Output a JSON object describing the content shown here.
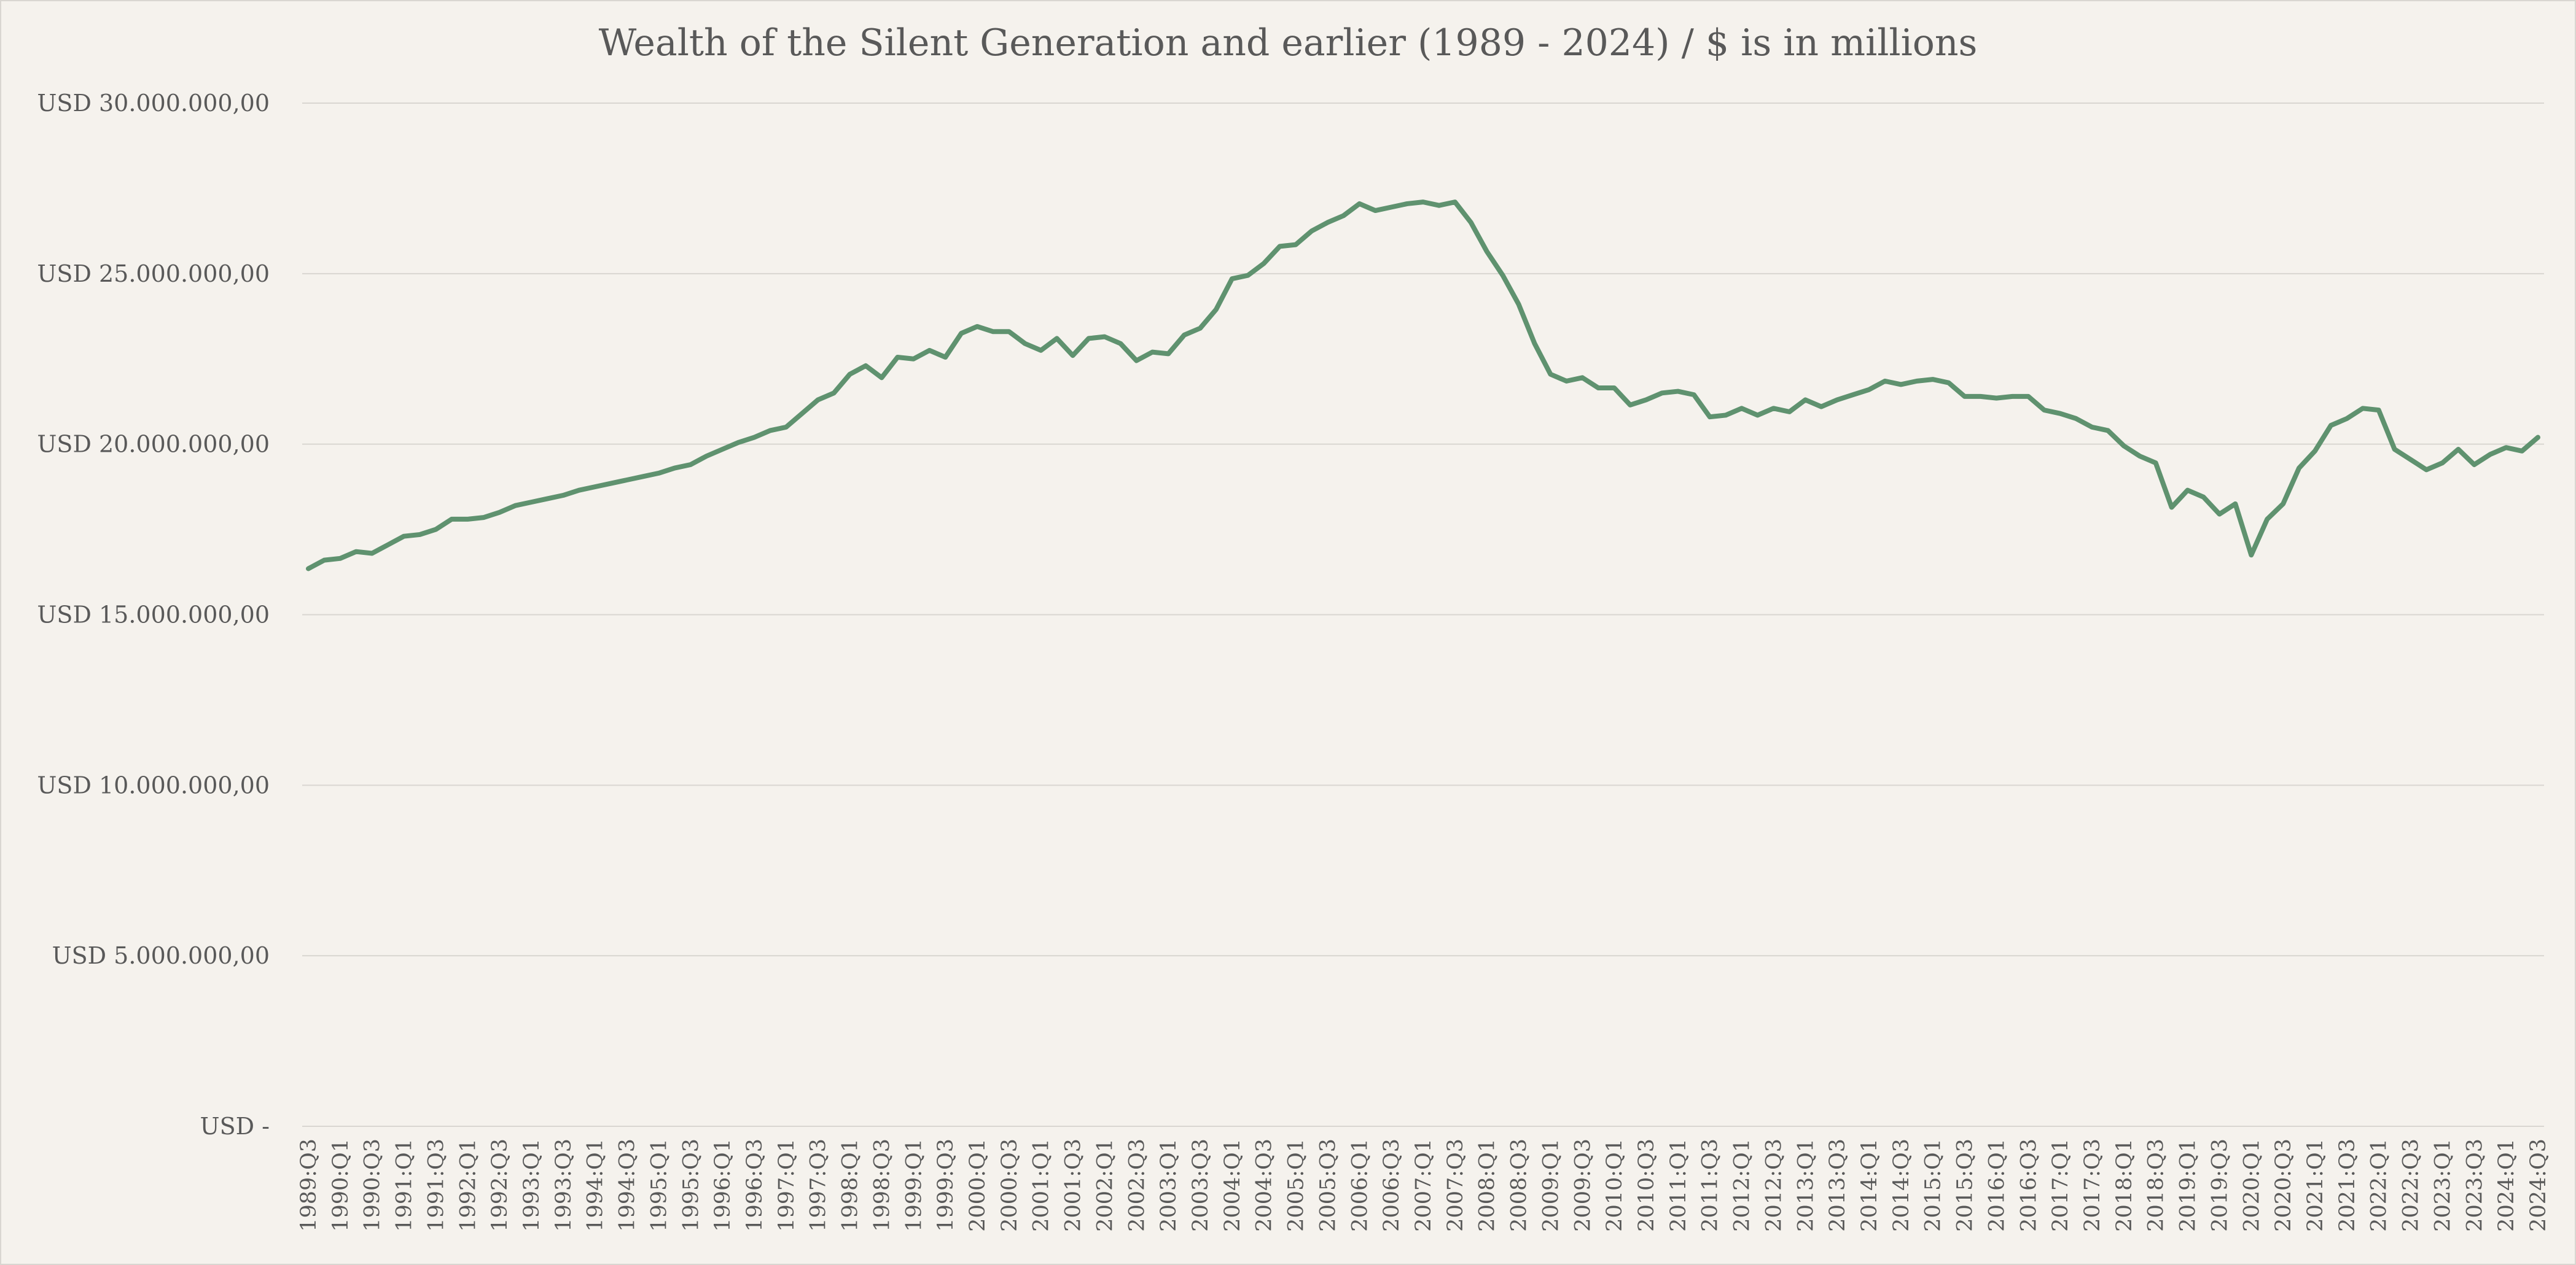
{
  "chart_data": {
    "type": "line",
    "title": "Wealth of the Silent Generation and earlier (1989 - 2024)  / $ is in millions",
    "xlabel": "",
    "ylabel": "",
    "ylim": [
      0,
      30000000
    ],
    "yticks": [
      0,
      5000000,
      10000000,
      15000000,
      20000000,
      25000000,
      30000000
    ],
    "ytick_labels": [
      "USD -",
      "USD 5.000.000,00",
      "USD 10.000.000,00",
      "USD 15.000.000,00",
      "USD 20.000.000,00",
      "USD 25.000.000,00",
      "USD 30.000.000,00"
    ],
    "grid": true,
    "legend": "none",
    "line_color": "#5f926f",
    "x_tick_labels": [
      "1989:Q3",
      "1990:Q1",
      "1990:Q3",
      "1991:Q1",
      "1991:Q3",
      "1992:Q1",
      "1992:Q3",
      "1993:Q1",
      "1993:Q3",
      "1994:Q1",
      "1994:Q3",
      "1995:Q1",
      "1995:Q3",
      "1996:Q1",
      "1996:Q3",
      "1997:Q1",
      "1997:Q3",
      "1998:Q1",
      "1998:Q3",
      "1999:Q1",
      "1999:Q3",
      "2000:Q1",
      "2000:Q3",
      "2001:Q1",
      "2001:Q3",
      "2002:Q1",
      "2002:Q3",
      "2003:Q1",
      "2003:Q3",
      "2004:Q1",
      "2004:Q3",
      "2005:Q1",
      "2005:Q3",
      "2006:Q1",
      "2006:Q3",
      "2007:Q1",
      "2007:Q3",
      "2008:Q1",
      "2008:Q3",
      "2009:Q1",
      "2009:Q3",
      "2010:Q1",
      "2010:Q3",
      "2011:Q1",
      "2011:Q3",
      "2012:Q1",
      "2012:Q3",
      "2013:Q1",
      "2013:Q3",
      "2014:Q1",
      "2014:Q3",
      "2015:Q1",
      "2015:Q3",
      "2016:Q1",
      "2016:Q3",
      "2017:Q1",
      "2017:Q3",
      "2018:Q1",
      "2018:Q3",
      "2019:Q1",
      "2019:Q3",
      "2020:Q1",
      "2020:Q3",
      "2021:Q1",
      "2021:Q3",
      "2022:Q1",
      "2022:Q3",
      "2023:Q1",
      "2023:Q3",
      "2024:Q1",
      "2024:Q3"
    ],
    "series": [
      {
        "values": [
          16350000,
          16600000,
          16650000,
          16850000,
          16800000,
          17050000,
          17300000,
          17350000,
          17500000,
          17800000,
          17800000,
          17850000,
          18000000,
          18200000,
          18300000,
          18400000,
          18500000,
          18650000,
          18750000,
          18850000,
          18950000,
          19050000,
          19150000,
          19300000,
          19400000,
          19650000,
          19850000,
          20050000,
          20200000,
          20400000,
          20500000,
          20900000,
          21300000,
          21500000,
          22050000,
          22300000,
          21950000,
          22550000,
          22500000,
          22750000,
          22550000,
          23250000,
          23450000,
          23300000,
          23300000,
          22950000,
          22750000,
          23100000,
          22600000,
          23100000,
          23150000,
          22950000,
          22450000,
          22700000,
          22650000,
          23200000,
          23400000,
          23950000,
          24850000,
          24950000,
          25300000,
          25800000,
          25850000,
          26250000,
          26500000,
          26700000,
          27050000,
          26850000,
          26950000,
          27050000,
          27100000,
          27000000,
          27100000,
          26500000,
          25650000,
          24950000,
          24100000,
          22950000,
          22050000,
          21850000,
          21950000,
          21650000,
          21650000,
          21150000,
          21300000,
          21500000,
          21550000,
          21450000,
          20800000,
          20850000,
          21050000,
          20850000,
          21050000,
          20950000,
          21300000,
          21100000,
          21300000,
          21450000,
          21600000,
          21850000,
          21750000,
          21850000,
          21900000,
          21800000,
          21400000,
          21400000,
          21350000,
          21400000,
          21400000,
          21000000,
          20900000,
          20750000,
          20500000,
          20400000,
          19950000,
          19650000,
          19450000,
          18150000,
          18650000,
          18450000,
          17950000,
          18250000,
          16750000,
          17800000,
          18250000,
          19300000,
          19800000,
          20550000,
          20750000,
          21050000,
          21000000,
          19850000,
          19550000,
          19250000,
          19450000,
          19850000,
          19400000,
          19700000,
          19900000,
          19800000,
          20200000
        ]
      }
    ]
  }
}
